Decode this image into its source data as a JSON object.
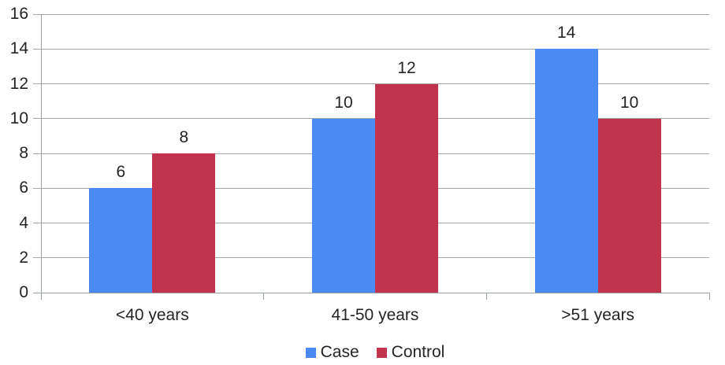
{
  "chart_data": {
    "type": "bar",
    "title": "",
    "xlabel": "",
    "ylabel": "",
    "categories": [
      "<40 years",
      "41-50 years",
      ">51 years"
    ],
    "series": [
      {
        "name": "Case",
        "color": "#4a8bf3",
        "values": [
          6,
          10,
          14
        ]
      },
      {
        "name": "Control",
        "color": "#c2344e",
        "values": [
          8,
          12,
          10
        ]
      }
    ],
    "ylim": [
      0,
      16
    ],
    "ytick_step": 2,
    "ytick_labels": [
      "0",
      "2",
      "4",
      "6",
      "8",
      "10",
      "12",
      "14",
      "16"
    ],
    "grid": true,
    "data_labels": true,
    "legend_position": "bottom"
  },
  "legend": {
    "items": [
      {
        "label": "Case",
        "color": "#4a8bf3"
      },
      {
        "label": "Control",
        "color": "#c2344e"
      }
    ]
  },
  "style": {
    "grid_color": "#a6a6a6",
    "axis_color": "#97a1a4",
    "text_color": "#242424",
    "background": "#ffffff"
  }
}
